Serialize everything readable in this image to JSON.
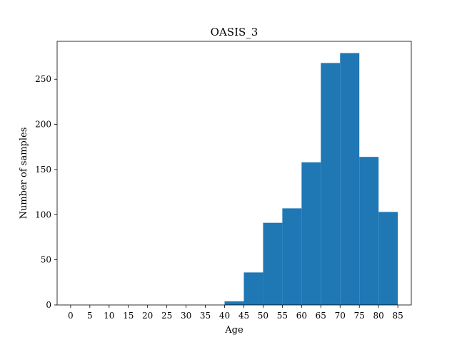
{
  "chart_data": {
    "type": "bar",
    "title": "OASIS_3",
    "xlabel": "Age",
    "ylabel": "Number of samples",
    "xlim": [
      -3.5,
      88.5
    ],
    "ylim": [
      0,
      292
    ],
    "xticks": [
      0,
      5,
      10,
      15,
      20,
      25,
      30,
      35,
      40,
      45,
      50,
      55,
      60,
      65,
      70,
      75,
      80,
      85
    ],
    "yticks": [
      0,
      50,
      100,
      150,
      200,
      250
    ],
    "bins": [
      {
        "start": 40,
        "end": 45,
        "value": 4
      },
      {
        "start": 45,
        "end": 50,
        "value": 36
      },
      {
        "start": 50,
        "end": 55,
        "value": 91
      },
      {
        "start": 55,
        "end": 60,
        "value": 107
      },
      {
        "start": 60,
        "end": 65,
        "value": 158
      },
      {
        "start": 65,
        "end": 70,
        "value": 268
      },
      {
        "start": 70,
        "end": 75,
        "value": 279
      },
      {
        "start": 75,
        "end": 80,
        "value": 164
      },
      {
        "start": 80,
        "end": 85,
        "value": 103
      }
    ],
    "bar_color": "#1f77b4",
    "grid": false,
    "legend": "none"
  }
}
